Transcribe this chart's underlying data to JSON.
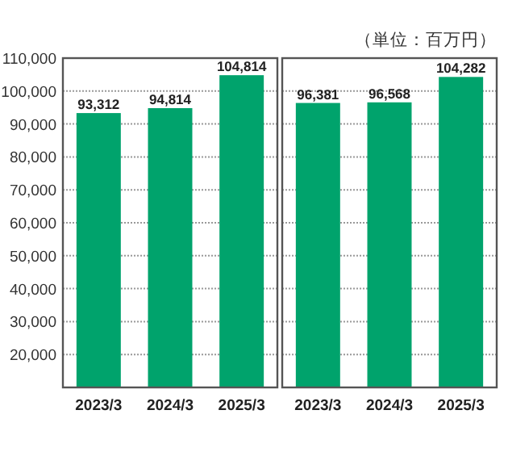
{
  "chart_data": [
    {
      "type": "bar",
      "categories": [
        "2023/3",
        "2024/3",
        "2025/3"
      ],
      "values": [
        93312,
        94814,
        104814
      ],
      "value_labels": [
        "93,312",
        "94,814",
        "104,814"
      ],
      "color": "#00a36c",
      "ylim": [
        10000,
        110000
      ],
      "yticks": [
        {
          "value": 10000,
          "label": null
        },
        {
          "value": 20000,
          "label": "20,000"
        },
        {
          "value": 30000,
          "label": "30,000"
        },
        {
          "value": 40000,
          "label": "40,000"
        },
        {
          "value": 50000,
          "label": "50,000"
        },
        {
          "value": 60000,
          "label": "60,000"
        },
        {
          "value": 70000,
          "label": "70,000"
        },
        {
          "value": 80000,
          "label": "80,000"
        },
        {
          "value": 90000,
          "label": "90,000"
        },
        {
          "value": 100000,
          "label": "100,000"
        },
        {
          "value": 110000,
          "label": "110,000"
        }
      ],
      "grid": "y"
    },
    {
      "type": "bar",
      "categories": [
        "2023/3",
        "2024/3",
        "2025/3"
      ],
      "values": [
        96381,
        96568,
        104282
      ],
      "value_labels": [
        "96,381",
        "96,568",
        "104,282"
      ],
      "color": "#00a36c",
      "ylim": [
        10000,
        110000
      ],
      "yticks": [
        {
          "value": 10000,
          "label": null
        },
        {
          "value": 20000,
          "label": null
        },
        {
          "value": 30000,
          "label": null
        },
        {
          "value": 40000,
          "label": null
        },
        {
          "value": 50000,
          "label": null
        },
        {
          "value": 60000,
          "label": null
        },
        {
          "value": 70000,
          "label": null
        },
        {
          "value": 80000,
          "label": null
        },
        {
          "value": 90000,
          "label": null
        },
        {
          "value": 100000,
          "label": null
        },
        {
          "value": 110000,
          "label": null
        }
      ],
      "grid": "y",
      "tick_labels": "x",
      "annotations": [
        "（単位：百万円）"
      ]
    }
  ]
}
